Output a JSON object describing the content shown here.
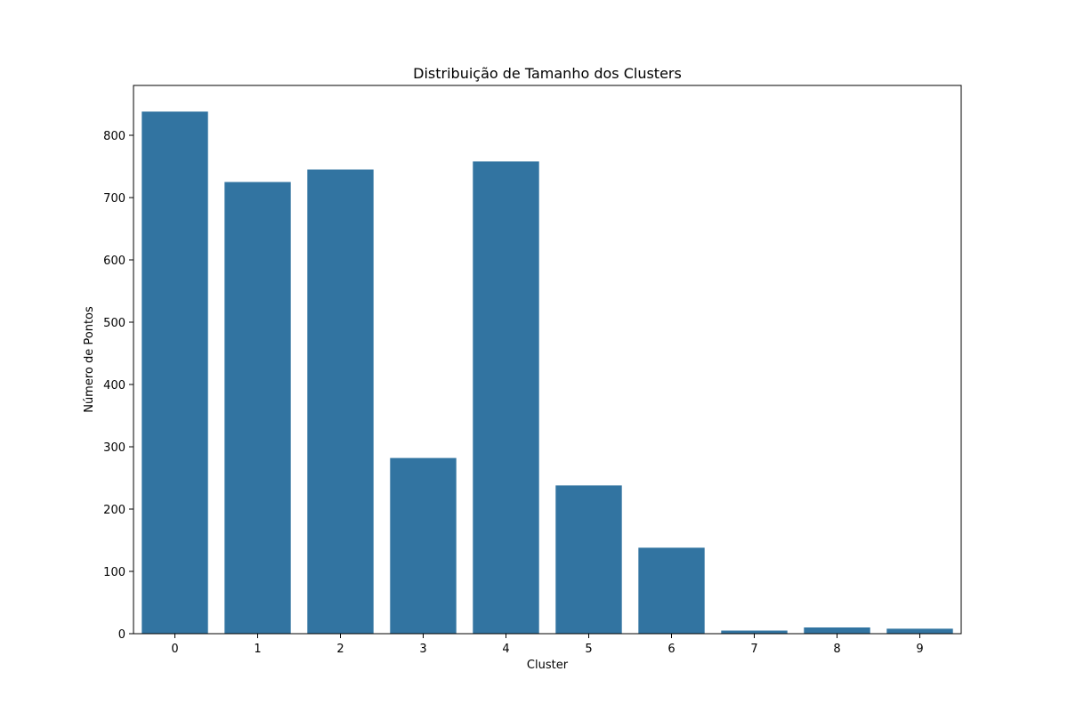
{
  "chart_data": {
    "type": "bar",
    "title": "Distribuição de Tamanho dos Clusters",
    "xlabel": "Cluster",
    "ylabel": "Número de Pontos",
    "categories": [
      "0",
      "1",
      "2",
      "3",
      "4",
      "5",
      "6",
      "7",
      "8",
      "9"
    ],
    "values": [
      838,
      725,
      745,
      282,
      758,
      238,
      138,
      5,
      10,
      8
    ],
    "ylim": [
      0,
      880
    ],
    "yticks": [
      0,
      100,
      200,
      300,
      400,
      500,
      600,
      700,
      800
    ],
    "ytick_labels": [
      "0",
      "100",
      "200",
      "300",
      "400",
      "500",
      "600",
      "700",
      "800"
    ],
    "bar_color": "#3274a1",
    "grid": false,
    "legend": false
  }
}
